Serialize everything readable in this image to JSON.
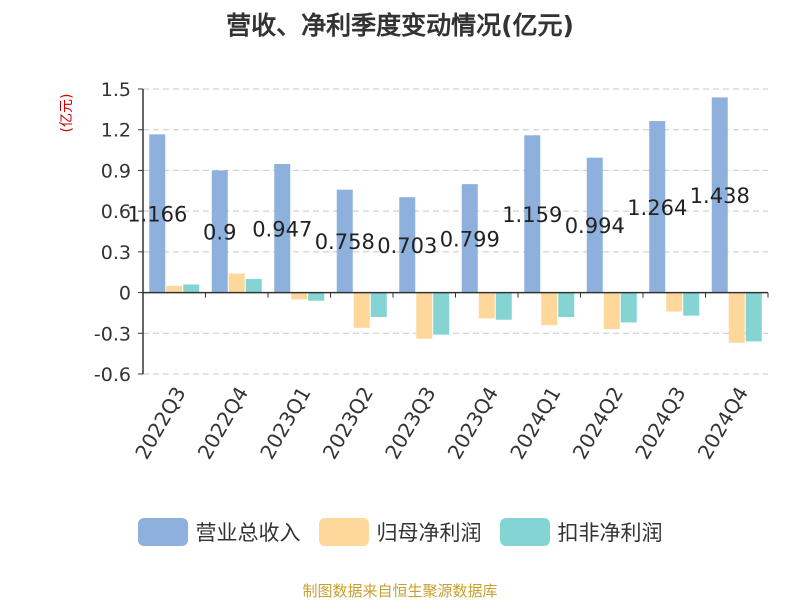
{
  "chart_data": {
    "type": "bar",
    "title": "营收、净利季度变动情况(亿元)",
    "ylabel": "(亿元)",
    "ylim": [
      -0.6,
      1.5
    ],
    "yticks": [
      "1.5",
      "1.2",
      "0.9",
      "0.6",
      "0.3",
      "0",
      "-0.3",
      "-0.6"
    ],
    "grid": true,
    "legend_position": "bottom",
    "categories": [
      "2022Q3",
      "2022Q4",
      "2023Q1",
      "2023Q2",
      "2023Q3",
      "2023Q4",
      "2024Q1",
      "2024Q2",
      "2024Q3",
      "2024Q4"
    ],
    "series": [
      {
        "name": "营业总收入",
        "color": "#8eb0dc",
        "values": [
          1.166,
          0.9,
          0.947,
          0.758,
          0.703,
          0.799,
          1.159,
          0.994,
          1.264,
          1.438
        ],
        "labels": [
          "1.166",
          "0.9",
          "0.947",
          "0.758",
          "0.703",
          "0.799",
          "1.159",
          "0.994",
          "1.264",
          "1.438"
        ]
      },
      {
        "name": "归母净利润",
        "color": "#fdd89a",
        "values": [
          0.05,
          0.14,
          -0.05,
          -0.26,
          -0.34,
          -0.19,
          -0.24,
          -0.27,
          -0.14,
          -0.37
        ]
      },
      {
        "name": "扣非净利润",
        "color": "#84d4d4",
        "values": [
          0.06,
          0.1,
          -0.06,
          -0.18,
          -0.31,
          -0.2,
          -0.18,
          -0.22,
          -0.17,
          -0.36
        ]
      }
    ]
  },
  "source_text": "制图数据来自恒生聚源数据库"
}
